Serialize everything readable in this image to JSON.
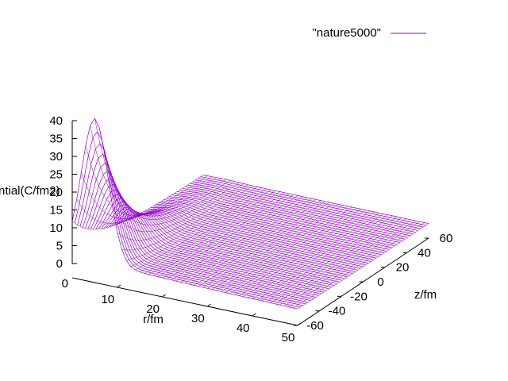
{
  "chart_data": {
    "type": "surface",
    "legend": {
      "label": "\"nature5000\"",
      "color": "#9400d3",
      "position": "top-right"
    },
    "xlabel": "r/fm",
    "ylabel": "z/fm",
    "zlabel": "ntial(C/fm2)",
    "xlim": [
      0,
      50
    ],
    "ylim": [
      -60,
      60
    ],
    "zlim": [
      0,
      40
    ],
    "x_ticks": [
      "10",
      "20",
      "30",
      "40",
      "50"
    ],
    "y_ticks": [
      "-60",
      "-40",
      "-20",
      "0",
      "20",
      "40",
      "60"
    ],
    "z_ticks": [
      "0",
      "5",
      "10",
      "15",
      "20",
      "25",
      "30",
      "35",
      "40"
    ],
    "z_floor_label": "0",
    "surface": {
      "description": "potential vs r (fm) and z (fm); peak near r=5, z=-60",
      "r_peak": 5.0,
      "z_peak": -60,
      "peak_value": 40,
      "r_samples": 50,
      "z_samples": 50
    },
    "grid": false
  }
}
